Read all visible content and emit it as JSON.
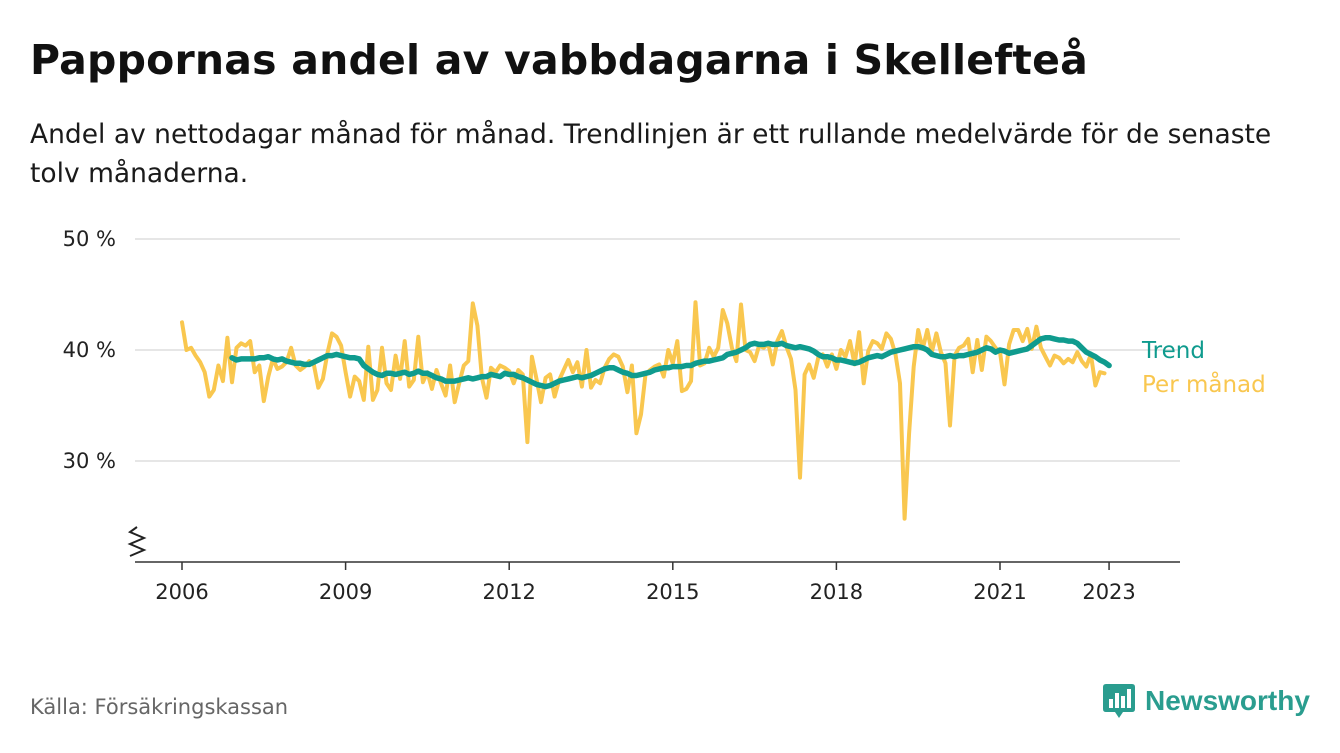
{
  "title": "Pappornas andel av vabbdagarna i Skellefteå",
  "subtitle": "Andel av nettodagar månad för månad. Trendlinjen är ett rullande medelvärde för de senaste tolv månaderna.",
  "source": "Källa: Försäkringskassan",
  "brand": "Newsworthy",
  "colors": {
    "monthly": "#f9c74f",
    "trend": "#0f9b8e",
    "grid": "#dddddd",
    "axis": "#333333",
    "brand": "#2a9d8f"
  },
  "chart_data": {
    "type": "line",
    "x_ticks": [
      {
        "value": 2006,
        "label": "2006"
      },
      {
        "value": 2009,
        "label": "2009"
      },
      {
        "value": 2012,
        "label": "2012"
      },
      {
        "value": 2015,
        "label": "2015"
      },
      {
        "value": 2018,
        "label": "2018"
      },
      {
        "value": 2021,
        "label": "2021"
      },
      {
        "value": 2023,
        "label": "2023"
      }
    ],
    "y_ticks": [
      {
        "value": 30,
        "label": "30 %"
      },
      {
        "value": 40,
        "label": "40 %"
      },
      {
        "value": 50,
        "label": "50 %"
      }
    ],
    "ylim": [
      21,
      50
    ],
    "y_axis_break": true,
    "grid": true,
    "legend_position": "right, at line ends",
    "series": [
      {
        "name": "Per månad",
        "x_start": "2006-01",
        "values": [
          42.5,
          40.0,
          40.2,
          39.5,
          38.9,
          38.0,
          35.8,
          36.4,
          38.6,
          37.2,
          41.1,
          37.1,
          40.2,
          40.6,
          40.4,
          40.8,
          38.0,
          38.6,
          35.4,
          37.6,
          39.2,
          38.3,
          38.5,
          38.9,
          40.2,
          38.6,
          38.2,
          38.5,
          39.0,
          38.7,
          36.6,
          37.4,
          39.7,
          41.5,
          41.2,
          40.4,
          38.0,
          35.8,
          37.6,
          37.2,
          35.5,
          40.3,
          35.5,
          36.4,
          40.2,
          37.0,
          36.4,
          39.5,
          37.4,
          40.8,
          36.7,
          37.3,
          41.2,
          37.1,
          38.0,
          36.5,
          38.2,
          37.0,
          35.9,
          38.6,
          35.3,
          37.0,
          38.6,
          39.0,
          44.2,
          42.2,
          37.5,
          35.7,
          38.4,
          38.0,
          38.6,
          38.4,
          38.1,
          37.0,
          38.2,
          37.8,
          31.7,
          39.4,
          37.4,
          35.3,
          37.5,
          37.8,
          35.8,
          37.3,
          38.2,
          39.1,
          38.0,
          38.9,
          36.7,
          40.0,
          36.6,
          37.3,
          37.0,
          38.4,
          39.2,
          39.6,
          39.4,
          38.5,
          36.2,
          38.6,
          32.5,
          34.2,
          37.8,
          38.2,
          38.5,
          38.7,
          37.6,
          40.0,
          38.8,
          40.8,
          36.3,
          36.5,
          37.2,
          44.3,
          38.6,
          38.8,
          40.2,
          39.4,
          40.2,
          43.6,
          42.4,
          40.2,
          39.0,
          44.1,
          40.0,
          39.8,
          39.0,
          40.4,
          40.2,
          40.6,
          38.7,
          40.8,
          41.7,
          40.3,
          39.2,
          36.4,
          28.5,
          37.8,
          38.7,
          37.5,
          39.3,
          39.6,
          38.5,
          39.6,
          38.3,
          40.0,
          39.4,
          40.8,
          38.7,
          41.6,
          37.0,
          39.9,
          40.8,
          40.6,
          40.1,
          41.5,
          41.0,
          39.6,
          37.0,
          24.8,
          32.5,
          38.5,
          41.8,
          40.1,
          41.8,
          39.8,
          41.5,
          39.8,
          38.8,
          33.2,
          39.5,
          40.2,
          40.4,
          41.0,
          38.0,
          40.9,
          38.2,
          41.2,
          40.8,
          40.2,
          39.8,
          36.9,
          40.5,
          41.8,
          41.8,
          40.8,
          41.9,
          40.1,
          42.1,
          40.2,
          39.4,
          38.6,
          39.5,
          39.3,
          38.8,
          39.2,
          38.9,
          39.8,
          39.0,
          38.5,
          39.6,
          36.8,
          38.0,
          37.9
        ]
      },
      {
        "name": "Trend",
        "x_start": "2006-12",
        "values": [
          39.3,
          39.1,
          39.2,
          39.2,
          39.2,
          39.2,
          39.3,
          39.3,
          39.4,
          39.2,
          39.1,
          39.2,
          39.0,
          38.9,
          38.8,
          38.8,
          38.7,
          38.7,
          38.9,
          39.1,
          39.3,
          39.5,
          39.5,
          39.6,
          39.5,
          39.4,
          39.3,
          39.3,
          39.2,
          38.6,
          38.3,
          38.0,
          37.8,
          37.7,
          37.9,
          37.9,
          37.8,
          37.9,
          38.0,
          37.8,
          37.9,
          38.1,
          37.9,
          37.9,
          37.7,
          37.5,
          37.4,
          37.2,
          37.2,
          37.2,
          37.3,
          37.4,
          37.5,
          37.4,
          37.5,
          37.6,
          37.6,
          37.8,
          37.7,
          37.6,
          37.9,
          37.8,
          37.8,
          37.6,
          37.5,
          37.3,
          37.1,
          36.9,
          36.8,
          36.7,
          36.8,
          37.0,
          37.2,
          37.3,
          37.4,
          37.5,
          37.6,
          37.5,
          37.6,
          37.7,
          37.9,
          38.1,
          38.3,
          38.4,
          38.4,
          38.2,
          38.0,
          37.9,
          37.7,
          37.7,
          37.8,
          37.9,
          38.0,
          38.2,
          38.3,
          38.4,
          38.4,
          38.5,
          38.5,
          38.5,
          38.6,
          38.6,
          38.8,
          38.9,
          39.0,
          39.0,
          39.1,
          39.2,
          39.3,
          39.6,
          39.7,
          39.8,
          40.0,
          40.2,
          40.5,
          40.6,
          40.5,
          40.5,
          40.6,
          40.5,
          40.5,
          40.6,
          40.4,
          40.3,
          40.2,
          40.3,
          40.2,
          40.1,
          39.9,
          39.6,
          39.4,
          39.4,
          39.3,
          39.1,
          39.1,
          39.0,
          38.9,
          38.8,
          38.9,
          39.1,
          39.3,
          39.4,
          39.5,
          39.4,
          39.6,
          39.8,
          39.9,
          40.0,
          40.1,
          40.2,
          40.3,
          40.3,
          40.2,
          40.0,
          39.6,
          39.5,
          39.4,
          39.4,
          39.5,
          39.4,
          39.5,
          39.5,
          39.6,
          39.7,
          39.8,
          40.0,
          40.2,
          40.1,
          39.8,
          40.0,
          39.9,
          39.7,
          39.8,
          39.9,
          40.0,
          40.1,
          40.4,
          40.7,
          41.0,
          41.1,
          41.1,
          41.0,
          40.9,
          40.9,
          40.8,
          40.8,
          40.6,
          40.2,
          39.8,
          39.6,
          39.4,
          39.1,
          38.9,
          38.6
        ]
      }
    ]
  }
}
